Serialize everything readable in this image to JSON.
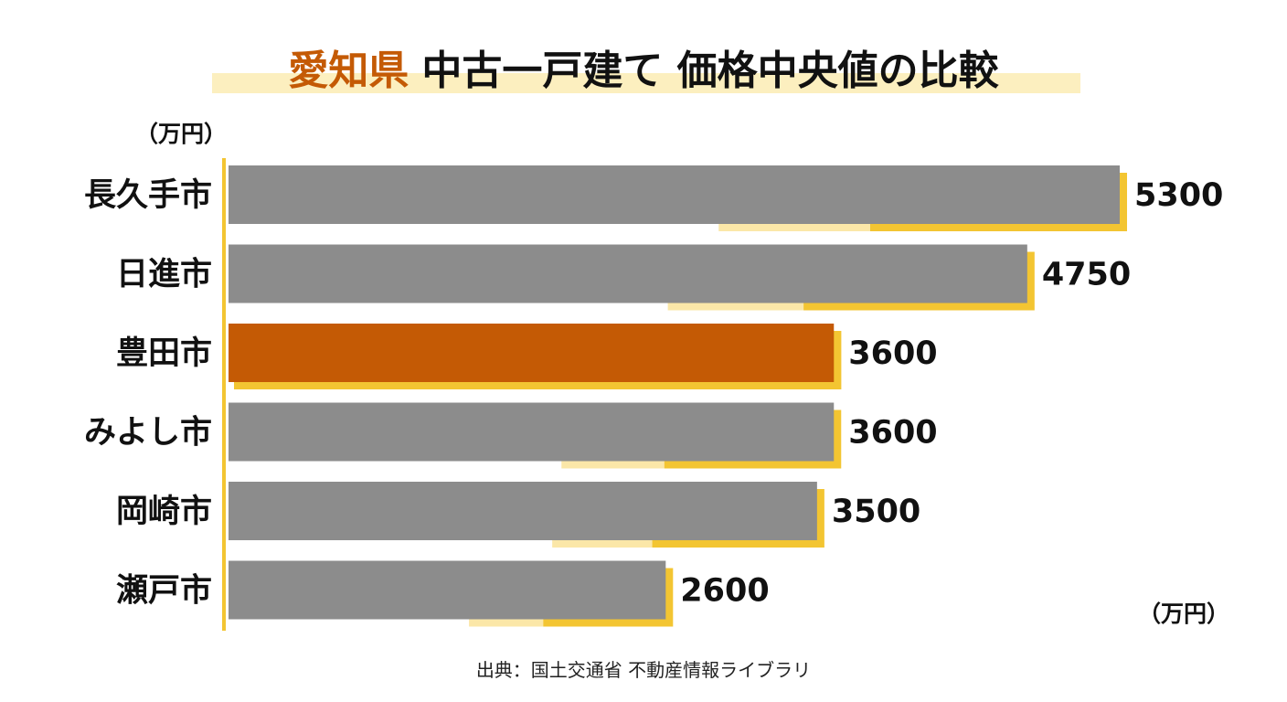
{
  "chart_data": {
    "type": "bar",
    "orientation": "horizontal",
    "title_highlight": "愛知県",
    "title_rest": "中古一戸建て 価格中央値の比較",
    "unit_top": "（万円）",
    "unit_bottom": "（万円）",
    "source": "出典：国土交通省 不動産情報ライブラリ",
    "categories": [
      "長久手市",
      "日進市",
      "豊田市",
      "みよし市",
      "岡崎市",
      "瀬戸市"
    ],
    "values": [
      5300,
      4750,
      3600,
      3600,
      3500,
      2600
    ],
    "highlight_index": 2,
    "grid": false,
    "legend": "none",
    "colors": {
      "bar": "#8c8c8c",
      "highlight_bar": "#c45a05",
      "shadow": "#f3c532",
      "shadow_light": "#fbe7a8",
      "axis": "#f3c532",
      "title_highlight": "#c45a05",
      "title_underline": "#fcefbf"
    }
  }
}
